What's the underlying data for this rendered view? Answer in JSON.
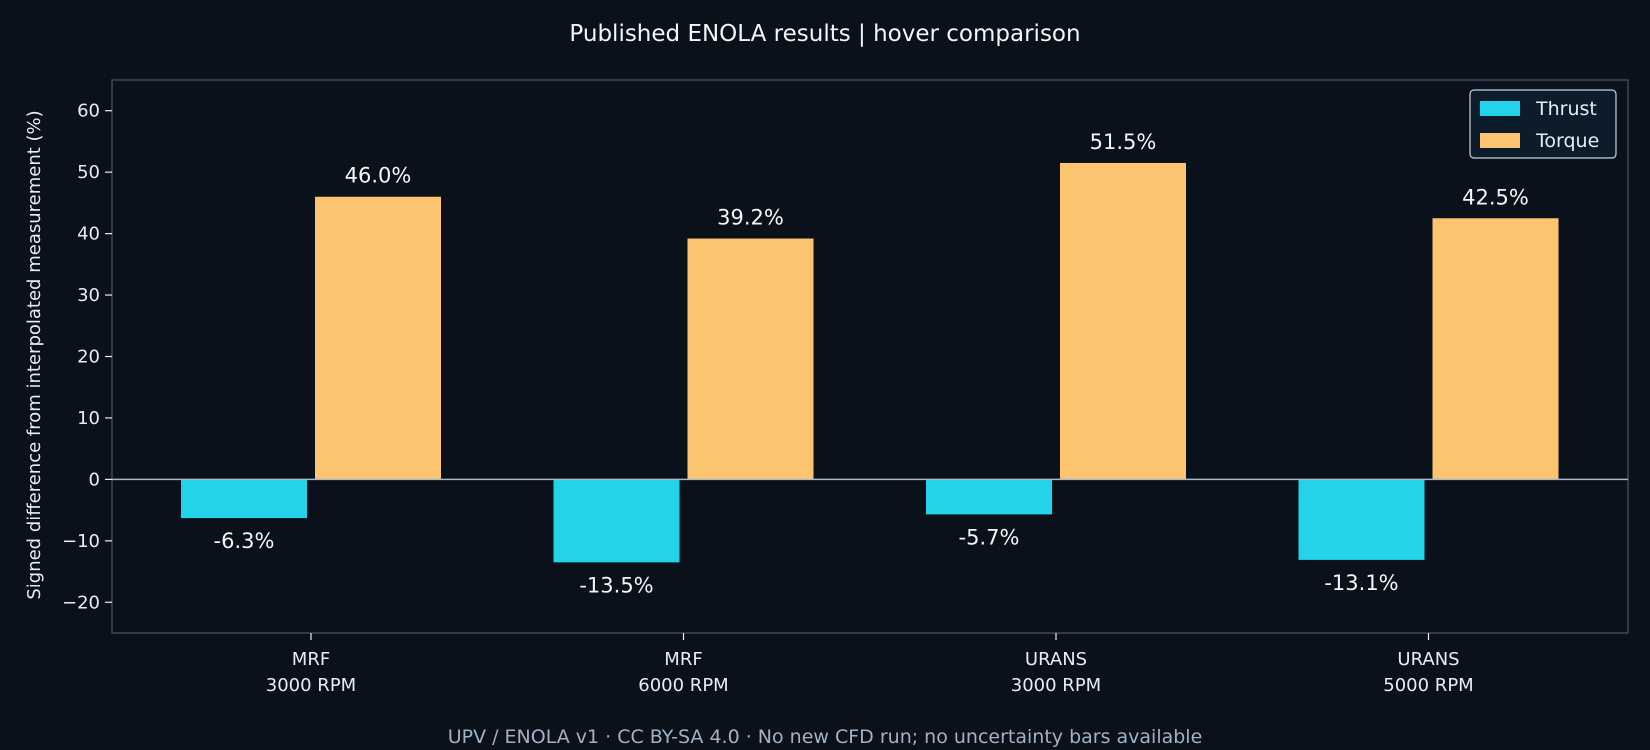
{
  "chart_data": {
    "type": "bar",
    "title": "Published ENOLA results | hover comparison",
    "ylabel": "Signed difference from interpolated measurement (%)",
    "xlabel": "",
    "categories": [
      [
        "MRF",
        "3000 RPM"
      ],
      [
        "MRF",
        "6000 RPM"
      ],
      [
        "URANS",
        "3000 RPM"
      ],
      [
        "URANS",
        "5000 RPM"
      ]
    ],
    "series": [
      {
        "name": "Thrust",
        "color": "#22d3ea",
        "values": [
          -6.3,
          -13.5,
          -5.7,
          -13.1
        ],
        "labels": [
          "-6.3%",
          "-13.5%",
          "-5.7%",
          "-13.1%"
        ]
      },
      {
        "name": "Torque",
        "color": "#fdc470",
        "values": [
          46.0,
          39.2,
          51.5,
          42.5
        ],
        "labels": [
          "46.0%",
          "39.2%",
          "51.5%",
          "42.5%"
        ]
      }
    ],
    "ylim": [
      -25,
      65
    ],
    "yticks": [
      60,
      50,
      40,
      30,
      20,
      10,
      0,
      -10,
      -20
    ],
    "ytick_labels": [
      "60",
      "50",
      "40",
      "30",
      "20",
      "10",
      "0",
      "−10",
      "−20"
    ],
    "grid": false,
    "legend_position": "top-right"
  },
  "footer": "UPV / ENOLA v1 · CC BY-SA 4.0 · No new CFD run; no uncertainty bars available",
  "colors": {
    "background": "#0a111a",
    "axes_border": "#3a4a5a",
    "zero_line": "#a8b8c8"
  }
}
